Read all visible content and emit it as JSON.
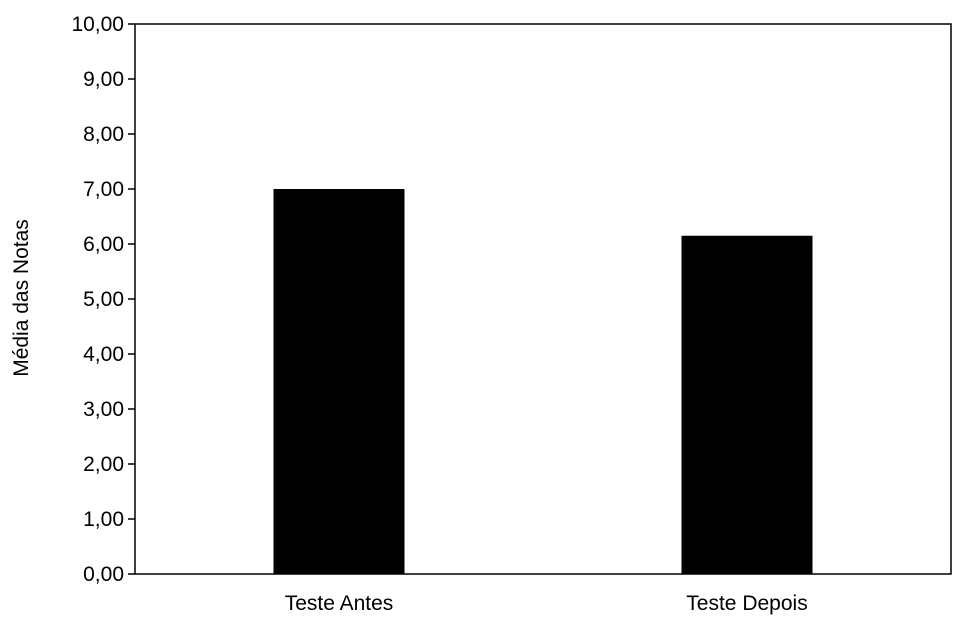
{
  "chart_data": {
    "type": "bar",
    "categories": [
      "Teste Antes",
      "Teste Depois"
    ],
    "values": [
      7.0,
      6.15
    ],
    "title": "",
    "xlabel": "",
    "ylabel": "Média das Notas",
    "ylim": [
      0,
      10
    ],
    "yticks": [
      0,
      1,
      2,
      3,
      4,
      5,
      6,
      7,
      8,
      9,
      10
    ],
    "ytick_labels": [
      "0,00",
      "1,00",
      "2,00",
      "3,00",
      "4,00",
      "5,00",
      "6,00",
      "7,00",
      "8,00",
      "9,00",
      "10,00"
    ],
    "grid": false,
    "legend": "none",
    "colors": {
      "bar": "#000000",
      "axis": "#000000",
      "background": "#ffffff"
    }
  }
}
